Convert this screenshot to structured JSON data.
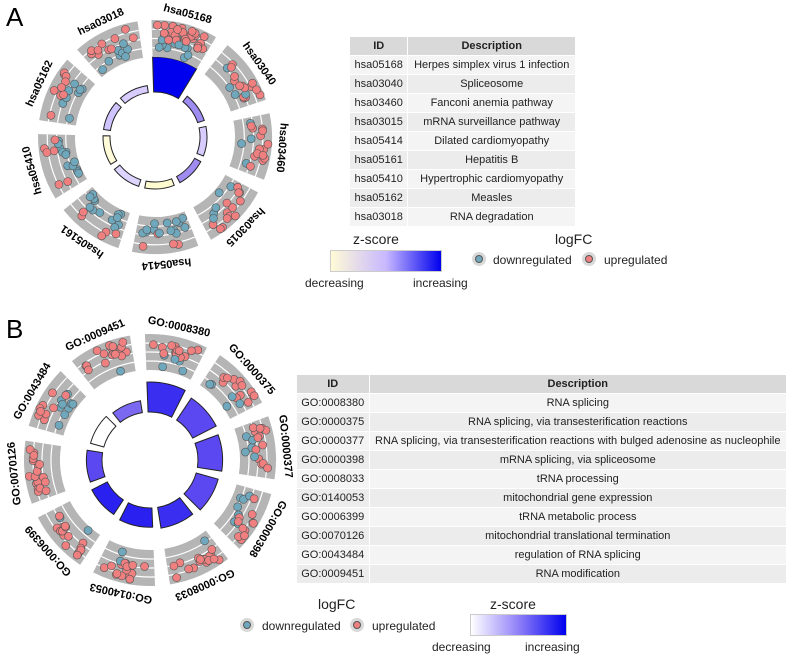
{
  "panels": {
    "a": "A",
    "b": "B"
  },
  "colors": {
    "down": "#6fa8bd",
    "up": "#f08080",
    "track": "#b5b5b5",
    "low": "#fffbd6",
    "high": "#0000ee"
  },
  "chart_data": [
    {
      "type": "circle",
      "title": "A",
      "terms": [
        "hsa05168",
        "hsa03040",
        "hsa03460",
        "hsa03015",
        "hsa05414",
        "hsa05161",
        "hsa05410",
        "hsa05162",
        "hsa03018"
      ],
      "zscore_color": [
        "#0000ee",
        "#9f8cf0",
        "#d8ccff",
        "#a08cf0",
        "#fffbd0",
        "#ddd5ff",
        "#fffbd8",
        "#d0c4ff",
        "#d8ccff"
      ],
      "bar_size": [
        1,
        0.35,
        0.35,
        0.35,
        0.35,
        0.35,
        0.35,
        0.35,
        0.35
      ],
      "up_frac": [
        0.7,
        0.8,
        0.75,
        0.8,
        0.3,
        0.55,
        0.3,
        0.7,
        0.6
      ],
      "table": {
        "headers": [
          "ID",
          "Description"
        ],
        "rows": [
          [
            "hsa05168",
            "Herpes simplex virus 1 infection"
          ],
          [
            "hsa03040",
            "Spliceosome"
          ],
          [
            "hsa03460",
            "Fanconi anemia pathway"
          ],
          [
            "hsa03015",
            "mRNA surveillance pathway"
          ],
          [
            "hsa05414",
            "Dilated cardiomyopathy"
          ],
          [
            "hsa05161",
            "Hepatitis B"
          ],
          [
            "hsa05410",
            "Hypertrophic cardiomyopathy"
          ],
          [
            "hsa05162",
            "Measles"
          ],
          [
            "hsa03018",
            "RNA degradation"
          ]
        ]
      },
      "legend": {
        "zscore_title": "z-score",
        "decreasing": "decreasing",
        "increasing": "increasing",
        "logfc_title": "logFC",
        "down": "downregulated",
        "up": "upregulated"
      }
    },
    {
      "type": "circle",
      "title": "B",
      "terms": [
        "GO:0008380",
        "GO:0000375",
        "GO:0000377",
        "GO:0000398",
        "GO:0008033",
        "GO:0140053",
        "GO:0006399",
        "GO:0070126",
        "GO:0043484",
        "GO:0009451"
      ],
      "zscore_color": [
        "#3a2ef0",
        "#5b48f0",
        "#5b48f0",
        "#5b48f0",
        "#3a2ef0",
        "#2a20f0",
        "#2a20f0",
        "#5b48f0",
        "#ffffff",
        "#7a68f0"
      ],
      "bar_size": [
        1,
        0.9,
        0.85,
        0.8,
        0.75,
        0.7,
        0.65,
        0.6,
        0.55,
        0.5
      ],
      "up_frac": [
        0.75,
        0.7,
        0.7,
        0.7,
        0.9,
        0.9,
        0.95,
        1,
        0.7,
        0.85
      ],
      "table": {
        "headers": [
          "ID",
          "Description"
        ],
        "rows": [
          [
            "GO:0008380",
            "RNA splicing"
          ],
          [
            "GO:0000375",
            "RNA splicing, via transesterification reactions"
          ],
          [
            "GO:0000377",
            "RNA splicing, via transesterification reactions with bulged adenosine as nucleophile"
          ],
          [
            "GO:0000398",
            "mRNA splicing, via spliceosome"
          ],
          [
            "GO:0008033",
            "tRNA processing"
          ],
          [
            "GO:0140053",
            "mitochondrial gene expression"
          ],
          [
            "GO:0006399",
            "tRNA metabolic process"
          ],
          [
            "GO:0070126",
            "mitochondrial translational termination"
          ],
          [
            "GO:0043484",
            "regulation of RNA splicing"
          ],
          [
            "GO:0009451",
            "RNA modification"
          ]
        ]
      },
      "legend": {
        "zscore_title": "z-score",
        "decreasing": "decreasing",
        "increasing": "increasing",
        "logfc_title": "logFC",
        "down": "downregulated",
        "up": "upregulated"
      }
    }
  ]
}
